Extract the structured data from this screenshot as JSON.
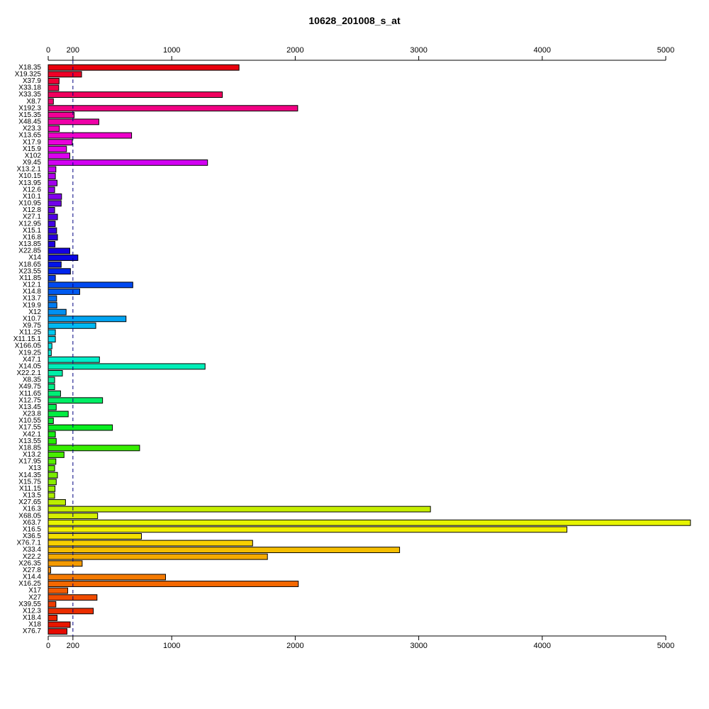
{
  "chart_data": {
    "type": "bar",
    "orientation": "horizontal",
    "title": "10628_201008_s_at",
    "xlabel": "",
    "ylabel": "",
    "xlim": [
      0,
      5000
    ],
    "x_ticks": [
      0,
      200,
      1000,
      2000,
      3000,
      4000,
      5000
    ],
    "reference_line": 200,
    "axes": "top-and-bottom",
    "grid": false,
    "legend": "none",
    "categories": [
      "X18.35",
      "X19.325",
      "X37.9",
      "X33.18",
      "X33.35",
      "X8.7",
      "X192.3",
      "X15.35",
      "X48.45",
      "X23.3",
      "X13.65",
      "X17.9",
      "X15.9",
      "X102",
      "X9.45",
      "X13.2.1",
      "X10.15",
      "X13.95",
      "X12.6",
      "X10.1",
      "X10.95",
      "X12.8",
      "X27.1",
      "X12.95",
      "X15.1",
      "X16.8",
      "X13.85",
      "X22.85",
      "X14",
      "X18.65",
      "X23.55",
      "X11.85",
      "X12.1",
      "X14.8",
      "X13.7",
      "X19.9",
      "X12",
      "X10.7",
      "X9.75",
      "X11.25",
      "X11.15.1",
      "X166.05",
      "X19.25",
      "X47.1",
      "X14.05",
      "X22.2.1",
      "X8.35",
      "X49.75",
      "X11.65",
      "X12.75",
      "X13.45",
      "X23.8",
      "X10.55",
      "X17.55",
      "X42.1",
      "X13.55",
      "X18.85",
      "X13.2",
      "X17.95",
      "X13",
      "X14.35",
      "X15.75",
      "X11.15",
      "X13.5",
      "X27.65",
      "X16.3",
      "X68.05",
      "X63.7",
      "X16.5",
      "X36.5",
      "X76.7.1",
      "X33.4",
      "X22.2",
      "X26.35",
      "X27.8",
      "X14.4",
      "X16.25",
      "X17",
      "X27",
      "X39.55",
      "X12.3",
      "X18.4",
      "X18",
      "X76.7"
    ],
    "values": [
      1545,
      270,
      88,
      85,
      1410,
      42,
      2020,
      210,
      410,
      90,
      675,
      195,
      148,
      175,
      1290,
      62,
      58,
      72,
      52,
      108,
      105,
      52,
      75,
      57,
      68,
      75,
      55,
      175,
      240,
      105,
      180,
      58,
      685,
      255,
      68,
      70,
      145,
      630,
      385,
      58,
      58,
      30,
      25,
      415,
      1270,
      115,
      52,
      52,
      100,
      440,
      65,
      162,
      42,
      520,
      58,
      65,
      740,
      128,
      62,
      52,
      75,
      65,
      55,
      52,
      140,
      3095,
      400,
      5200,
      4200,
      755,
      1655,
      2845,
      1775,
      275,
      20,
      950,
      2025,
      158,
      395,
      62,
      365,
      72,
      178,
      152
    ],
    "colors": [
      "#E8000D",
      "#EF0027",
      "#EF0035",
      "#EF0047",
      "#F0005E",
      "#F0006E",
      "#F10083",
      "#F10096",
      "#F000A8",
      "#EF00B8",
      "#EE00CA",
      "#EA00DA",
      "#E500EA",
      "#DD00F0",
      "#D200F2",
      "#C200F0",
      "#B200EE",
      "#A200EE",
      "#9200EE",
      "#8200EC",
      "#7100EA",
      "#6200E8",
      "#5200E6",
      "#4200E4",
      "#3300E2",
      "#2800E0",
      "#1E00E0",
      "#1400E2",
      "#0A06E4",
      "#0015E8",
      "#0026EC",
      "#0036EE",
      "#0049F0",
      "#005AF0",
      "#006DF0",
      "#007CF2",
      "#0090F2",
      "#00A4F2",
      "#00B8F2",
      "#00C8F0",
      "#00D8EE",
      "#00E4E6",
      "#00EAD8",
      "#00EDC8",
      "#00EEB8",
      "#00EEA8",
      "#00EE98",
      "#00EE88",
      "#00EE76",
      "#00EE64",
      "#00EE54",
      "#00EE42",
      "#00EE32",
      "#08EE20",
      "#16EE12",
      "#26EE00",
      "#36EE00",
      "#48EE00",
      "#58EE00",
      "#68EE00",
      "#7AEE00",
      "#8AEE00",
      "#9CEE00",
      "#ACEE00",
      "#BCEE00",
      "#C6EE00",
      "#D6F000",
      "#E6F400",
      "#F0EE00",
      "#F4E000",
      "#F8D000",
      "#F4BE00",
      "#F4AA00",
      "#F49A00",
      "#F48A00",
      "#F47A00",
      "#F46800",
      "#F25A00",
      "#F04C00",
      "#EE3C00",
      "#EC2E00",
      "#EA2200",
      "#E81600",
      "#E60A00"
    ]
  }
}
